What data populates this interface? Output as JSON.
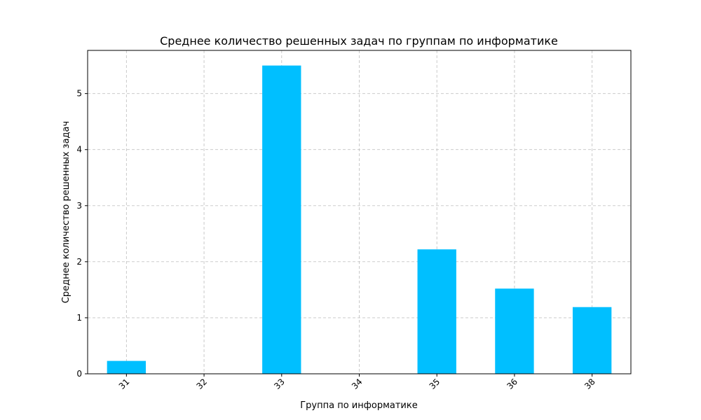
{
  "chart_data": {
    "type": "bar",
    "title": "Среднее количество решенных задач по группам по информатике",
    "xlabel": "Группа по информатике",
    "ylabel": "Среднее количество решенных задач",
    "categories": [
      "31",
      "32",
      "33",
      "34",
      "35",
      "36",
      "38"
    ],
    "values": [
      0.23,
      0,
      5.5,
      0,
      2.22,
      1.52,
      1.19
    ],
    "ylim": [
      0,
      5.77
    ],
    "yticks": [
      0,
      1,
      2,
      3,
      4,
      5
    ],
    "xtick_rotation": "45°",
    "grid": true,
    "legend": "none",
    "bar_color": "#00bfff"
  }
}
